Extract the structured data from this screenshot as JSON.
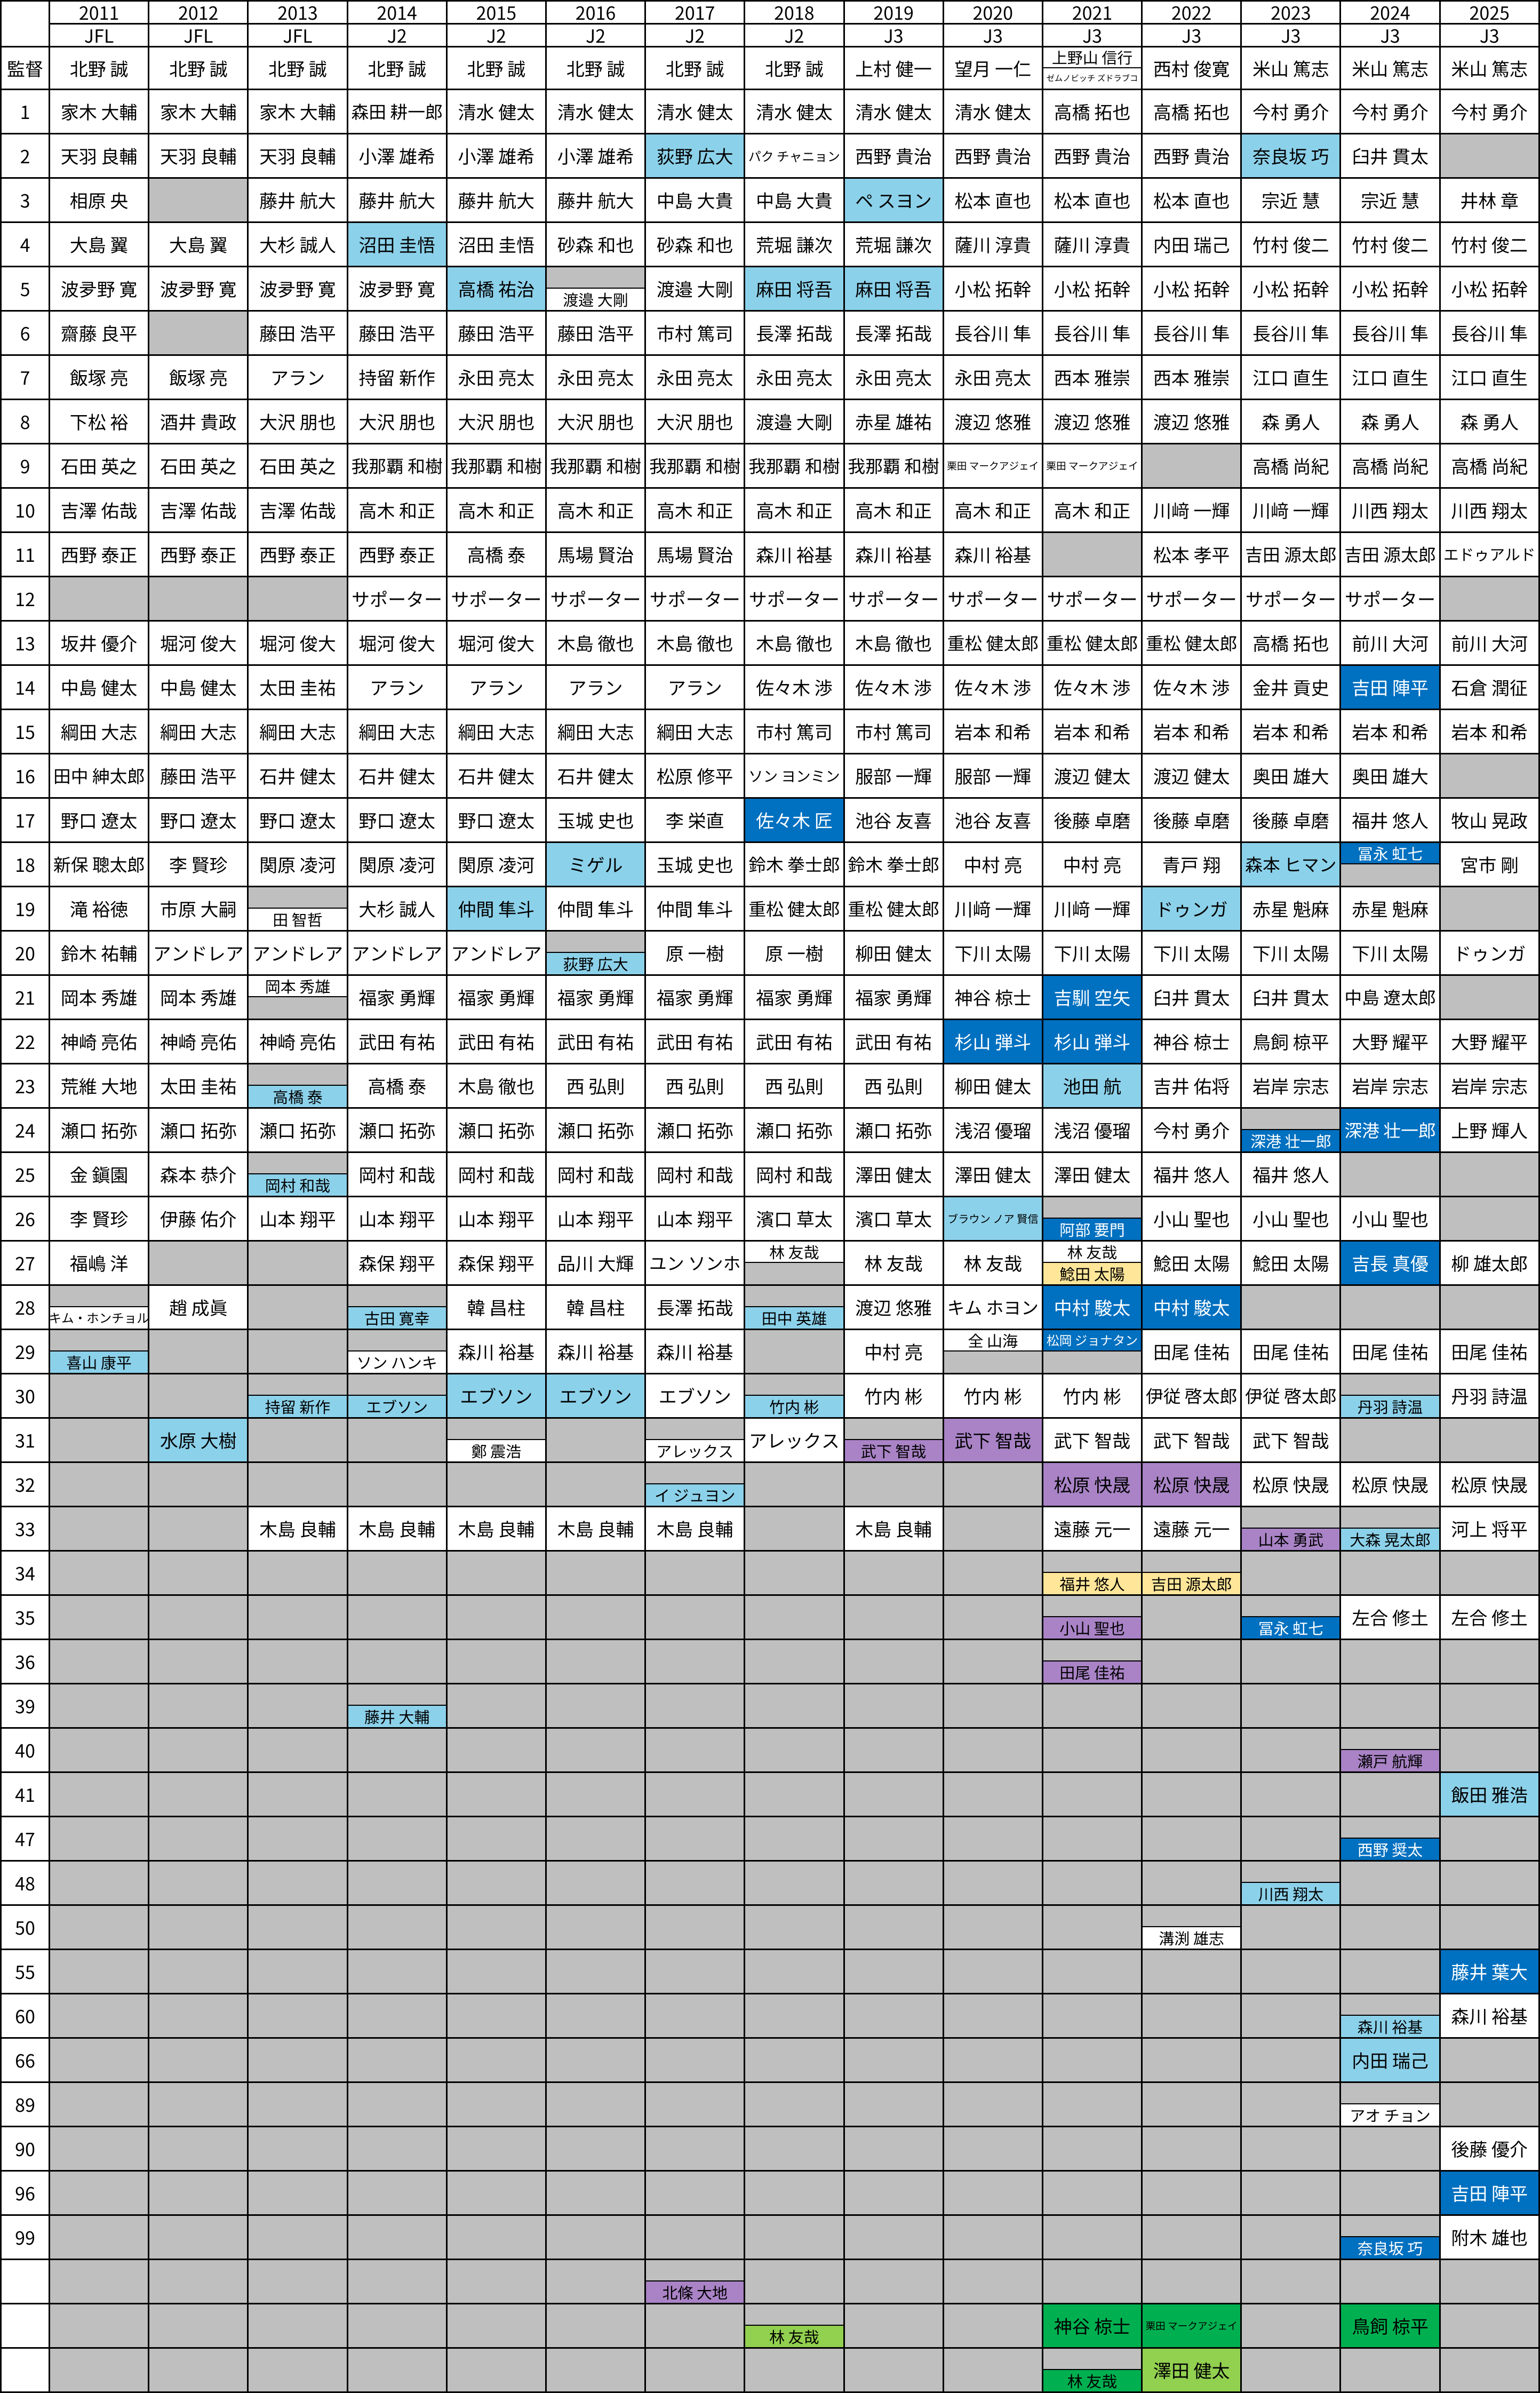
{
  "corner_label": "",
  "manager_row_label": "監督",
  "years": [
    "2011",
    "2012",
    "2013",
    "2014",
    "2015",
    "2016",
    "2017",
    "2018",
    "2019",
    "2020",
    "2021",
    "2022",
    "2023",
    "2024",
    "2025"
  ],
  "leagues": [
    "JFL",
    "JFL",
    "JFL",
    "J2",
    "J2",
    "J2",
    "J2",
    "J2",
    "J3",
    "J3",
    "J3",
    "J3",
    "J3",
    "J3",
    "J3"
  ],
  "row_labels": [
    "監督",
    "1",
    "2",
    "3",
    "4",
    "5",
    "6",
    "7",
    "8",
    "9",
    "10",
    "11",
    "12",
    "13",
    "14",
    "15",
    "16",
    "17",
    "18",
    "19",
    "20",
    "21",
    "22",
    "23",
    "24",
    "25",
    "26",
    "27",
    "28",
    "29",
    "30",
    "31",
    "32",
    "33",
    "34",
    "35",
    "36",
    "39",
    "40",
    "41",
    "47",
    "48",
    "50",
    "55",
    "60",
    "66",
    "89",
    "90",
    "96",
    "99",
    "",
    "",
    ""
  ],
  "colors": {
    "grid": "#000000",
    "gray": "#BFBFBF",
    "white": "#FFFFFF",
    "lightblue": "#8CD1EA",
    "darkblue": "#0070C0",
    "purple": "#A983C6",
    "yellow": "#FFE699",
    "green": "#00B050",
    "lightgreen": "#92D050",
    "text": "#000000",
    "text_on_darkblue": "#FFFFFF"
  },
  "columns": [
    [
      "北野 誠",
      "家木 大輔",
      "天羽 良輔",
      "相原 央",
      "大島 翼",
      "波夛野 寛",
      "齋藤 良平",
      "飯塚 亮",
      "下松 裕",
      "石田 英之",
      "吉澤 佑哉",
      "西野 泰正",
      null,
      "坂井 優介",
      "中島 健太",
      "綱田 大志",
      "田中 紳太郎",
      "野口 遼太",
      "新保 聰太郎",
      "滝 裕徳",
      "鈴木 祐輔",
      "岡本 秀雄",
      "神崎 亮佑",
      "荒維 大地",
      "瀬口 拓弥",
      "金 鎭園",
      "李 賢珍",
      "福嶋 洋",
      {
        "s": [
          null,
          "キム・ホンチョル"
        ]
      },
      {
        "s": [
          null,
          {
            "c": "b",
            "t": "喜山 康平"
          }
        ]
      },
      null,
      null,
      null,
      null,
      null,
      null,
      null,
      null,
      null,
      null,
      null,
      null,
      null,
      null,
      null,
      null,
      null,
      null,
      null,
      null,
      null,
      null,
      null
    ],
    [
      "北野 誠",
      "家木 大輔",
      "天羽 良輔",
      null,
      "大島 翼",
      "波夛野 寛",
      null,
      "飯塚 亮",
      "酒井 貴政",
      "石田 英之",
      "吉澤 佑哉",
      "西野 泰正",
      null,
      "堀河 俊大",
      "中島 健太",
      "綱田 大志",
      "藤田 浩平",
      "野口 遼太",
      "李 賢珍",
      "市原 大嗣",
      "アンドレア",
      "岡本 秀雄",
      "神崎 亮佑",
      "太田 圭祐",
      "瀬口 拓弥",
      "森本 恭介",
      "伊藤 佑介",
      null,
      "趙 成眞",
      null,
      null,
      {
        "c": "b",
        "t": "水原 大樹"
      },
      null,
      null,
      null,
      null,
      null,
      null,
      null,
      null,
      null,
      null,
      null,
      null,
      null,
      null,
      null,
      null,
      null,
      null,
      null,
      null,
      null
    ],
    [
      "北野 誠",
      "家木 大輔",
      "天羽 良輔",
      "藤井 航大",
      "大杉 誠人",
      "波夛野 寛",
      "藤田 浩平",
      "アラン",
      "大沢 朋也",
      "石田 英之",
      "吉澤 佑哉",
      "西野 泰正",
      null,
      "堀河 俊大",
      "太田 圭祐",
      "綱田 大志",
      "石井 健太",
      "野口 遼太",
      "関原 凌河",
      {
        "s": [
          null,
          "田 智哲"
        ]
      },
      "アンドレア",
      {
        "s": [
          "岡本 秀雄",
          null
        ]
      },
      "神崎 亮佑",
      {
        "s": [
          null,
          {
            "c": "b",
            "t": "高橋 泰"
          }
        ]
      },
      "瀬口 拓弥",
      {
        "s": [
          null,
          {
            "c": "b",
            "t": "岡村 和哉"
          }
        ]
      },
      "山本 翔平",
      null,
      null,
      null,
      {
        "s": [
          null,
          {
            "c": "b",
            "t": "持留 新作"
          }
        ]
      },
      null,
      null,
      "木島 良輔",
      null,
      null,
      null,
      null,
      null,
      null,
      null,
      null,
      null,
      null,
      null,
      null,
      null,
      null,
      null,
      null,
      null,
      null,
      null
    ],
    [
      "北野 誠",
      "森田 耕一郎",
      "小澤 雄希",
      "藤井 航大",
      {
        "c": "b",
        "t": "沼田 圭悟"
      },
      "波夛野 寛",
      "藤田 浩平",
      "持留 新作",
      "大沢 朋也",
      "我那覇 和樹",
      "高木 和正",
      "西野 泰正",
      "サポーター",
      "堀河 俊大",
      "アラン",
      "綱田 大志",
      "石井 健太",
      "野口 遼太",
      "関原 凌河",
      "大杉 誠人",
      "アンドレア",
      "福家 勇輝",
      "武田 有祐",
      "高橋 泰",
      "瀬口 拓弥",
      "岡村 和哉",
      "山本 翔平",
      "森保 翔平",
      {
        "s": [
          null,
          {
            "c": "b",
            "t": "古田 寛幸"
          }
        ]
      },
      {
        "s": [
          null,
          "ソン ハンキ"
        ]
      },
      {
        "s": [
          null,
          {
            "c": "b",
            "t": "エブソン"
          }
        ]
      },
      null,
      null,
      "木島 良輔",
      null,
      null,
      null,
      {
        "s": [
          null,
          {
            "c": "b",
            "t": "藤井 大輔"
          }
        ]
      },
      null,
      null,
      null,
      null,
      null,
      null,
      null,
      null,
      null,
      null,
      null,
      null,
      null,
      null,
      null
    ],
    [
      "北野 誠",
      "清水 健太",
      "小澤 雄希",
      "藤井 航大",
      "沼田 圭悟",
      {
        "c": "b",
        "t": "高橋 祐治"
      },
      "藤田 浩平",
      "永田 亮太",
      "大沢 朋也",
      "我那覇 和樹",
      "高木 和正",
      "高橋 泰",
      "サポーター",
      "堀河 俊大",
      "アラン",
      "綱田 大志",
      "石井 健太",
      "野口 遼太",
      "関原 凌河",
      {
        "c": "b",
        "t": "仲間 隼斗"
      },
      "アンドレア",
      "福家 勇輝",
      "武田 有祐",
      "木島 徹也",
      "瀬口 拓弥",
      "岡村 和哉",
      "山本 翔平",
      "森保 翔平",
      "韓 昌柱",
      "森川 裕基",
      {
        "c": "b",
        "t": "エブソン"
      },
      {
        "s": [
          null,
          "鄭 震浩"
        ]
      },
      null,
      "木島 良輔",
      null,
      null,
      null,
      null,
      null,
      null,
      null,
      null,
      null,
      null,
      null,
      null,
      null,
      null,
      null,
      null,
      null,
      null,
      null
    ],
    [
      "北野 誠",
      "清水 健太",
      "小澤 雄希",
      "藤井 航大",
      "砂森 和也",
      {
        "s": [
          null,
          "渡邉 大剛"
        ]
      },
      "藤田 浩平",
      "永田 亮太",
      "大沢 朋也",
      "我那覇 和樹",
      "高木 和正",
      "馬場 賢治",
      "サポーター",
      "木島 徹也",
      "アラン",
      "綱田 大志",
      "石井 健太",
      "玉城 史也",
      {
        "c": "b",
        "t": "ミゲル"
      },
      "仲間 隼斗",
      {
        "s": [
          null,
          {
            "c": "b",
            "t": "荻野 広大"
          }
        ]
      },
      "福家 勇輝",
      "武田 有祐",
      "西 弘則",
      "瀬口 拓弥",
      "岡村 和哉",
      "山本 翔平",
      "品川 大輝",
      "韓 昌柱",
      "森川 裕基",
      {
        "c": "b",
        "t": "エブソン"
      },
      null,
      null,
      "木島 良輔",
      null,
      null,
      null,
      null,
      null,
      null,
      null,
      null,
      null,
      null,
      null,
      null,
      null,
      null,
      null,
      null,
      null,
      null,
      null
    ],
    [
      "北野 誠",
      "清水 健太",
      {
        "c": "b",
        "t": "荻野 広大"
      },
      "中島 大貴",
      "砂森 和也",
      "渡邉 大剛",
      "市村 篤司",
      "永田 亮太",
      "大沢 朋也",
      "我那覇 和樹",
      "高木 和正",
      "馬場 賢治",
      "サポーター",
      "木島 徹也",
      "アラン",
      "綱田 大志",
      "松原 修平",
      "李 栄直",
      "玉城 史也",
      "仲間 隼斗",
      "原 一樹",
      "福家 勇輝",
      "武田 有祐",
      "西 弘則",
      "瀬口 拓弥",
      "岡村 和哉",
      "山本 翔平",
      "ユン ソンホ",
      "長澤 拓哉",
      "森川 裕基",
      "エブソン",
      {
        "s": [
          null,
          "アレックス"
        ]
      },
      {
        "s": [
          null,
          {
            "c": "b",
            "t": "イ ジュヨン"
          }
        ]
      },
      "木島 良輔",
      null,
      null,
      null,
      null,
      null,
      null,
      null,
      null,
      null,
      null,
      null,
      null,
      null,
      null,
      null,
      null,
      {
        "s": [
          null,
          {
            "c": "p",
            "t": "北條 大地"
          }
        ]
      },
      null,
      null
    ],
    [
      "北野 誠",
      "清水 健太",
      "パク チャニョン",
      "中島 大貴",
      "荒堀 謙次",
      {
        "c": "b",
        "t": "麻田 将吾"
      },
      "長澤 拓哉",
      "永田 亮太",
      "渡邉 大剛",
      "我那覇 和樹",
      "高木 和正",
      "森川 裕基",
      "サポーター",
      "木島 徹也",
      "佐々木 渉",
      "市村 篤司",
      "ソン ヨンミン",
      {
        "c": "B",
        "t": "佐々木 匠"
      },
      "鈴木 拳士郎",
      "重松 健太郎",
      "原 一樹",
      "福家 勇輝",
      "武田 有祐",
      "西 弘則",
      "瀬口 拓弥",
      "岡村 和哉",
      "濱口 草太",
      {
        "s": [
          "林 友哉",
          null
        ]
      },
      {
        "s": [
          null,
          {
            "c": "b",
            "t": "田中 英雄"
          }
        ]
      },
      null,
      {
        "s": [
          null,
          {
            "c": "b",
            "t": "竹内 彬"
          }
        ]
      },
      "アレックス",
      null,
      null,
      null,
      null,
      null,
      null,
      null,
      null,
      null,
      null,
      null,
      null,
      null,
      null,
      null,
      null,
      null,
      null,
      null,
      {
        "s": [
          null,
          {
            "c": "l",
            "t": "林 友哉"
          }
        ]
      },
      null
    ],
    [
      "上村 健一",
      "清水 健太",
      "西野 貴治",
      {
        "c": "b",
        "t": "ペ スヨン"
      },
      "荒堀 謙次",
      {
        "c": "b",
        "t": "麻田 将吾"
      },
      "長澤 拓哉",
      "永田 亮太",
      "赤星 雄祐",
      "我那覇 和樹",
      "高木 和正",
      "森川 裕基",
      "サポーター",
      "木島 徹也",
      "佐々木 渉",
      "市村 篤司",
      "服部 一輝",
      "池谷 友喜",
      "鈴木 拳士郎",
      "重松 健太郎",
      "柳田 健太",
      "福家 勇輝",
      "武田 有祐",
      "西 弘則",
      "瀬口 拓弥",
      "澤田 健太",
      "濱口 草太",
      "林 友哉",
      "渡辺 悠雅",
      "中村 亮",
      "竹内 彬",
      {
        "s": [
          null,
          {
            "c": "p",
            "t": "武下 智哉"
          }
        ]
      },
      null,
      "木島 良輔",
      null,
      null,
      null,
      null,
      null,
      null,
      null,
      null,
      null,
      null,
      null,
      null,
      null,
      null,
      null,
      null,
      null,
      null,
      null
    ],
    [
      "望月 一仁",
      "清水 健太",
      "西野 貴治",
      "松本 直也",
      "薩川 淳貴",
      "小松 拓幹",
      "長谷川 隼",
      "永田 亮太",
      "渡辺 悠雅",
      "栗田 マークアジェイ",
      "高木 和正",
      "森川 裕基",
      "サポーター",
      "重松 健太郎",
      "佐々木 渉",
      "岩本 和希",
      "服部 一輝",
      "池谷 友喜",
      "中村 亮",
      "川﨑 一輝",
      "下川 太陽",
      "神谷 椋士",
      {
        "c": "B",
        "t": "杉山 弾斗"
      },
      "柳田 健太",
      "浅沼 優瑠",
      "澤田 健太",
      {
        "c": "b",
        "t": "ブラウン ノア 賢信"
      },
      "林 友哉",
      "キム ホヨン",
      {
        "s": [
          "全 山海",
          null
        ]
      },
      "竹内 彬",
      {
        "c": "p",
        "t": "武下 智哉"
      },
      null,
      null,
      null,
      null,
      null,
      null,
      null,
      null,
      null,
      null,
      null,
      null,
      null,
      null,
      null,
      null,
      null,
      null,
      null,
      null,
      null
    ],
    [
      {
        "s": [
          "上野山 信行",
          "ゼムノビッチ ズドラブコ"
        ]
      },
      "高橋 拓也",
      "西野 貴治",
      "松本 直也",
      "薩川 淳貴",
      "小松 拓幹",
      "長谷川 隼",
      "西本 雅崇",
      "渡辺 悠雅",
      "栗田 マークアジェイ",
      "高木 和正",
      null,
      "サポーター",
      "重松 健太郎",
      "佐々木 渉",
      "岩本 和希",
      "渡辺 健太",
      "後藤 卓磨",
      "中村 亮",
      "川﨑 一輝",
      "下川 太陽",
      {
        "c": "B",
        "t": "吉馴 空矢"
      },
      {
        "c": "B",
        "t": "杉山 弾斗"
      },
      {
        "c": "b",
        "t": "池田 航"
      },
      "浅沼 優瑠",
      "澤田 健太",
      {
        "s": [
          null,
          {
            "c": "B",
            "t": "阿部 要門"
          }
        ]
      },
      {
        "s": [
          "林 友哉",
          {
            "c": "y",
            "t": "鯰田 太陽"
          }
        ]
      },
      {
        "c": "B",
        "t": "中村 駿太"
      },
      {
        "s": [
          {
            "c": "B",
            "t": "松岡 ジョナタン"
          },
          null
        ]
      },
      "竹内 彬",
      "武下 智哉",
      {
        "c": "p",
        "t": "松原 快晟"
      },
      "遠藤 元一",
      {
        "s": [
          null,
          {
            "c": "y",
            "t": "福井 悠人"
          }
        ]
      },
      {
        "s": [
          null,
          {
            "c": "p",
            "t": "小山 聖也"
          }
        ]
      },
      {
        "s": [
          null,
          {
            "c": "p",
            "t": "田尾 佳祐"
          }
        ]
      },
      null,
      null,
      null,
      null,
      null,
      null,
      null,
      null,
      null,
      null,
      null,
      null,
      null,
      null,
      {
        "c": "G",
        "t": "神谷 椋士"
      },
      {
        "s": [
          null,
          {
            "c": "G",
            "t": "林 友哉"
          }
        ]
      }
    ],
    [
      "西村 俊寛",
      "高橋 拓也",
      "西野 貴治",
      "松本 直也",
      "内田 瑞己",
      "小松 拓幹",
      "長谷川 隼",
      "西本 雅崇",
      "渡辺 悠雅",
      null,
      "川﨑 一輝",
      "松本 孝平",
      "サポーター",
      "重松 健太郎",
      "佐々木 渉",
      "岩本 和希",
      "渡辺 健太",
      "後藤 卓磨",
      "青戸 翔",
      {
        "c": "b",
        "t": "ドゥンガ"
      },
      "下川 太陽",
      "臼井 貫太",
      "神谷 椋士",
      "吉井 佑将",
      "今村 勇介",
      "福井 悠人",
      "小山 聖也",
      "鯰田 太陽",
      {
        "c": "B",
        "t": "中村 駿太"
      },
      "田尾 佳祐",
      "伊従 啓太郎",
      "武下 智哉",
      {
        "c": "p",
        "t": "松原 快晟"
      },
      "遠藤 元一",
      {
        "s": [
          null,
          {
            "c": "y",
            "t": "吉田 源太郎"
          }
        ]
      },
      null,
      null,
      null,
      null,
      null,
      null,
      null,
      {
        "s": [
          null,
          "溝渕 雄志"
        ]
      },
      null,
      null,
      null,
      null,
      null,
      null,
      null,
      null,
      {
        "c": "G",
        "t": "栗田 マークアジェイ"
      },
      {
        "c": "l",
        "t": "澤田 健太"
      }
    ],
    [
      "米山 篤志",
      "今村 勇介",
      {
        "c": "b",
        "t": "奈良坂 巧"
      },
      "宗近 慧",
      "竹村 俊二",
      "小松 拓幹",
      "長谷川 隼",
      "江口 直生",
      "森 勇人",
      "高橋 尚紀",
      "川﨑 一輝",
      "吉田 源太郎",
      "サポーター",
      "高橋 拓也",
      "金井 貢史",
      "岩本 和希",
      "奥田 雄大",
      "後藤 卓磨",
      {
        "c": "b",
        "t": "森本 ヒマン"
      },
      "赤星 魁麻",
      "下川 太陽",
      "臼井 貫太",
      "鳥飼 椋平",
      "岩岸 宗志",
      {
        "s": [
          null,
          {
            "c": "B",
            "t": "深港 壮一郎"
          }
        ]
      },
      "福井 悠人",
      "小山 聖也",
      "鯰田 太陽",
      null,
      "田尾 佳祐",
      "伊従 啓太郎",
      "武下 智哉",
      "松原 快晟",
      {
        "s": [
          null,
          {
            "c": "p",
            "t": "山本 勇武"
          }
        ]
      },
      null,
      {
        "s": [
          null,
          {
            "c": "B",
            "t": "冨永 虹七"
          }
        ]
      },
      null,
      null,
      null,
      null,
      null,
      {
        "s": [
          null,
          {
            "c": "b",
            "t": "川西 翔太"
          }
        ]
      },
      null,
      null,
      null,
      null,
      null,
      null,
      null,
      null,
      null,
      null,
      null
    ],
    [
      "米山 篤志",
      "今村 勇介",
      "臼井 貫太",
      "宗近 慧",
      "竹村 俊二",
      "小松 拓幹",
      "長谷川 隼",
      "江口 直生",
      "森 勇人",
      "高橋 尚紀",
      "川西 翔太",
      "吉田 源太郎",
      "サポーター",
      "前川 大河",
      {
        "c": "B",
        "t": "吉田 陣平"
      },
      "岩本 和希",
      "奥田 雄大",
      "福井 悠人",
      {
        "s": [
          {
            "c": "B",
            "t": "冨永 虹七"
          },
          null
        ]
      },
      "赤星 魁麻",
      "下川 太陽",
      "中島 遼太郎",
      "大野 耀平",
      "岩岸 宗志",
      {
        "c": "B",
        "t": "深港 壮一郎"
      },
      null,
      "小山 聖也",
      {
        "c": "B",
        "t": "吉長 真優"
      },
      null,
      "田尾 佳祐",
      {
        "s": [
          null,
          {
            "c": "b",
            "t": "丹羽 詩温"
          }
        ]
      },
      null,
      "松原 快晟",
      {
        "s": [
          null,
          {
            "c": "b",
            "t": "大森 晃太郎"
          }
        ]
      },
      null,
      "左合 修土",
      null,
      null,
      {
        "s": [
          null,
          {
            "c": "p",
            "t": "瀬戸 航輝"
          }
        ]
      },
      null,
      {
        "s": [
          null,
          {
            "c": "B",
            "t": "西野 奨太"
          }
        ]
      },
      null,
      null,
      null,
      {
        "s": [
          null,
          {
            "c": "b",
            "t": "森川 裕基"
          }
        ]
      },
      {
        "c": "b",
        "t": "内田 瑞己"
      },
      {
        "s": [
          null,
          "アオ チョン"
        ]
      },
      null,
      null,
      {
        "s": [
          null,
          {
            "c": "B",
            "t": "奈良坂 巧"
          }
        ]
      },
      null,
      {
        "c": "G",
        "t": "鳥飼 椋平"
      },
      null
    ],
    [
      "米山 篤志",
      "今村 勇介",
      null,
      "井林 章",
      "竹村 俊二",
      "小松 拓幹",
      "長谷川 隼",
      "江口 直生",
      "森 勇人",
      "高橋 尚紀",
      "川西 翔太",
      "エドゥアルド",
      null,
      "前川 大河",
      "石倉 潤征",
      "岩本 和希",
      null,
      "牧山 晃政",
      "宮市 剛",
      null,
      "ドゥンガ",
      null,
      "大野 耀平",
      "岩岸 宗志",
      "上野 輝人",
      null,
      null,
      "柳 雄太郎",
      null,
      "田尾 佳祐",
      "丹羽 詩温",
      null,
      "松原 快晟",
      "河上 将平",
      null,
      "左合 修土",
      null,
      null,
      null,
      {
        "c": "b",
        "t": "飯田 雅浩"
      },
      null,
      null,
      null,
      {
        "c": "B",
        "t": "藤井 葉大"
      },
      "森川 裕基",
      null,
      null,
      "後藤 優介",
      {
        "c": "B",
        "t": "吉田 陣平"
      },
      "附木 雄也",
      null,
      null,
      null
    ]
  ]
}
